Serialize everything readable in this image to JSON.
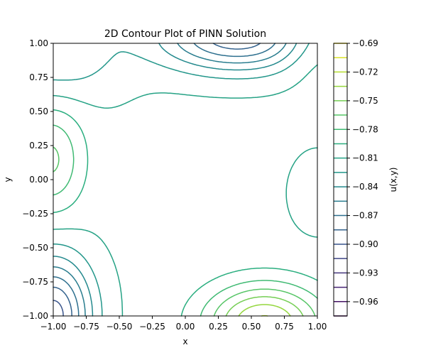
{
  "chart_data": {
    "type": "contour",
    "title": "2D Contour Plot of PINN Solution",
    "xlabel": "x",
    "ylabel": "y",
    "xlim": [
      -1.0,
      1.0
    ],
    "ylim": [
      -1.0,
      1.0
    ],
    "x_ticks": [
      "−1.00",
      "−0.75",
      "−0.50",
      "−0.25",
      "0.00",
      "0.25",
      "0.50",
      "0.75",
      "1.00"
    ],
    "y_ticks": [
      "−1.00",
      "−0.75",
      "−0.50",
      "−0.25",
      "0.00",
      "0.25",
      "0.50",
      "0.75",
      "1.00"
    ],
    "colorbar": {
      "label": "u(x,y)",
      "colormap": "viridis",
      "tick_labels": [
        "−0.69",
        "−0.72",
        "−0.75",
        "−0.78",
        "−0.81",
        "−0.84",
        "−0.87",
        "−0.90",
        "−0.93",
        "−0.96"
      ],
      "tick_values": [
        -0.69,
        -0.72,
        -0.75,
        -0.78,
        -0.81,
        -0.84,
        -0.87,
        -0.9,
        -0.93,
        -0.96
      ],
      "min": -0.975,
      "max": -0.69
    },
    "levels": [
      -0.975,
      -0.96,
      -0.945,
      -0.93,
      -0.915,
      -0.9,
      -0.885,
      -0.87,
      -0.855,
      -0.84,
      -0.825,
      -0.81,
      -0.795,
      -0.78,
      -0.765,
      -0.75,
      -0.735,
      -0.72,
      -0.705,
      -0.69
    ],
    "grid": false
  }
}
